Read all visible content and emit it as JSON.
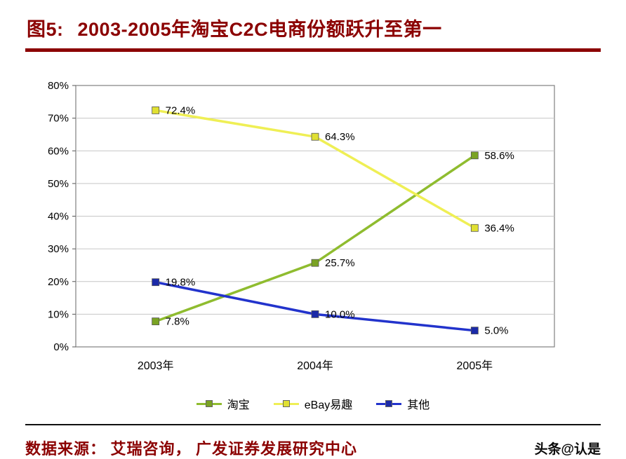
{
  "header": {
    "figure_label": "图5:",
    "title": "2003-2005年淘宝C2C电商份额跃升至第一"
  },
  "chart_data": {
    "type": "line",
    "categories": [
      "2003年",
      "2004年",
      "2005年"
    ],
    "series": [
      {
        "name": "淘宝",
        "color": "#8FBC2F",
        "marker_color": "#7AA323",
        "values": [
          7.8,
          25.7,
          58.6
        ]
      },
      {
        "name": "eBay易趣",
        "color": "#EFEF55",
        "marker_color": "#E0E032",
        "values": [
          72.4,
          64.3,
          36.4
        ]
      },
      {
        "name": "其他",
        "color": "#2233CC",
        "marker_color": "#1B2AA8",
        "values": [
          19.8,
          10.0,
          5.0
        ]
      }
    ],
    "ylim": [
      0,
      80
    ],
    "ytick_step": 10,
    "ytick_suffix": "%",
    "label_suffix": "%",
    "grid": "horizontal",
    "legend_position": "bottom",
    "xlabel": "",
    "ylabel": ""
  },
  "footer": {
    "source": "数据来源： 艾瑞咨询， 广发证券发展研究中心",
    "watermark": "头条@认是"
  },
  "colors": {
    "accent_red": "#8B0000",
    "gridline": "#c6c6c6",
    "plot_border": "#808080",
    "text": "#000000"
  }
}
